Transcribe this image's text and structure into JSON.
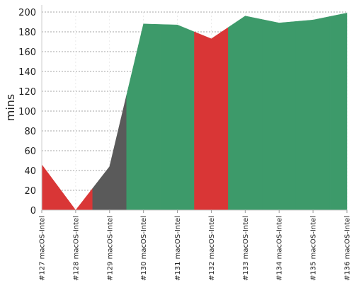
{
  "chart_data": {
    "type": "area",
    "ylabel": "mins",
    "xlabel": "",
    "ylim": [
      0,
      200
    ],
    "yticks": [
      0,
      20,
      40,
      60,
      80,
      100,
      120,
      140,
      160,
      180,
      200
    ],
    "categories": [
      "#127 macOS-Intel",
      "#128 macOS-Intel",
      "#129 macOS-Intel",
      "#130 macOS-Intel",
      "#131 macOS-Intel",
      "#132 macOS-Intel",
      "#133 macOS-Intel",
      "#134 macOS-Intel",
      "#135 macOS-Intel",
      "#136 macOS-Intel"
    ],
    "values": [
      46,
      0,
      44,
      188,
      187,
      173,
      196,
      189,
      192,
      199
    ],
    "statuses": [
      "failed",
      "failed",
      "unknown",
      "success",
      "success",
      "failed",
      "success",
      "success",
      "success",
      "success"
    ],
    "grid": true
  },
  "colors": {
    "failed": "#d93636",
    "unknown": "#5a5a5a",
    "success": "#3d9a6a",
    "grid": "#888888",
    "axis": "#cccccc"
  }
}
